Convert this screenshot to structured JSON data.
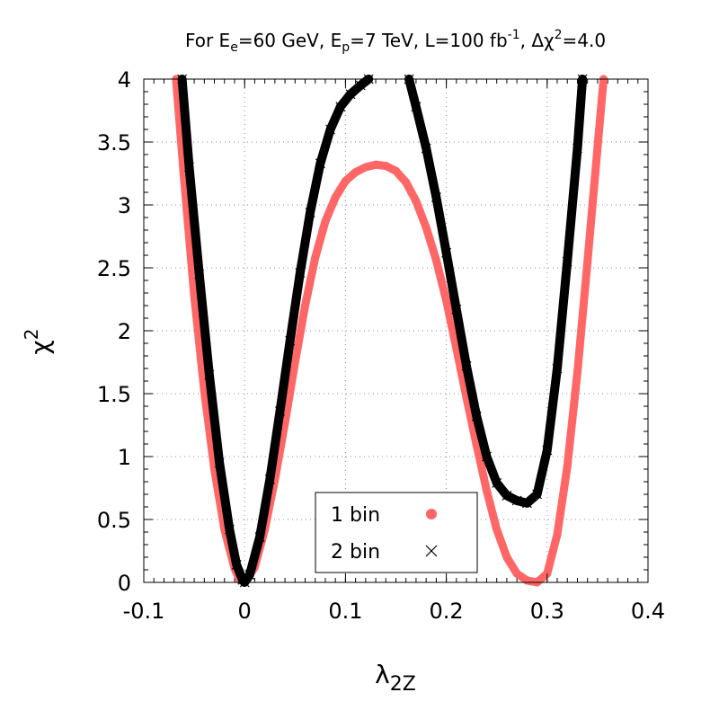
{
  "chart_data": {
    "type": "scatter",
    "title": {
      "p1": "For E",
      "s1": "e",
      "p2": "=60 GeV, E",
      "s2": "p",
      "p3": "=7 TeV, L=100 fb",
      "s3": "-1",
      "p4": ", Δχ",
      "s4": "2",
      "p5": "=4.0"
    },
    "xlabel": {
      "base": "λ",
      "sub": "2Z"
    },
    "ylabel": {
      "base": "χ",
      "sup": "2"
    },
    "xlim": [
      -0.1,
      0.4
    ],
    "ylim": [
      0,
      4
    ],
    "x_ticks": [
      {
        "v": -0.1,
        "label": "-0.1"
      },
      {
        "v": 0,
        "label": "0"
      },
      {
        "v": 0.1,
        "label": "0.1"
      },
      {
        "v": 0.2,
        "label": "0.2"
      },
      {
        "v": 0.3,
        "label": "0.3"
      },
      {
        "v": 0.4,
        "label": "0.4"
      }
    ],
    "y_ticks": [
      {
        "v": 0,
        "label": "0"
      },
      {
        "v": 0.5,
        "label": "0.5"
      },
      {
        "v": 1,
        "label": "1"
      },
      {
        "v": 1.5,
        "label": "1.5"
      },
      {
        "v": 2,
        "label": "2"
      },
      {
        "v": 2.5,
        "label": "2.5"
      },
      {
        "v": 3,
        "label": "3"
      },
      {
        "v": 3.5,
        "label": "3.5"
      },
      {
        "v": 4,
        "label": "4"
      }
    ],
    "grid": true,
    "legend_position": "bottom-center",
    "series": [
      {
        "name": "1 bin",
        "marker": "circle",
        "color": "#ff6666",
        "points": [
          [
            -0.068,
            4.0
          ],
          [
            -0.06,
            3.2
          ],
          [
            -0.05,
            2.28
          ],
          [
            -0.04,
            1.52
          ],
          [
            -0.03,
            0.9
          ],
          [
            -0.02,
            0.42
          ],
          [
            -0.01,
            0.11
          ],
          [
            -0.005,
            0.02
          ],
          [
            0.0,
            0.0
          ],
          [
            0.01,
            0.12
          ],
          [
            0.02,
            0.42
          ],
          [
            0.03,
            0.82
          ],
          [
            0.04,
            1.27
          ],
          [
            0.05,
            1.75
          ],
          [
            0.06,
            2.2
          ],
          [
            0.07,
            2.58
          ],
          [
            0.08,
            2.87
          ],
          [
            0.09,
            3.06
          ],
          [
            0.1,
            3.19
          ],
          [
            0.11,
            3.26
          ],
          [
            0.12,
            3.3
          ],
          [
            0.13,
            3.32
          ],
          [
            0.14,
            3.31
          ],
          [
            0.15,
            3.27
          ],
          [
            0.16,
            3.18
          ],
          [
            0.17,
            3.03
          ],
          [
            0.18,
            2.82
          ],
          [
            0.19,
            2.56
          ],
          [
            0.2,
            2.24
          ],
          [
            0.21,
            1.86
          ],
          [
            0.22,
            1.47
          ],
          [
            0.23,
            1.09
          ],
          [
            0.24,
            0.73
          ],
          [
            0.25,
            0.42
          ],
          [
            0.26,
            0.2
          ],
          [
            0.27,
            0.07
          ],
          [
            0.28,
            0.015
          ],
          [
            0.29,
            0.0
          ],
          [
            0.3,
            0.07
          ],
          [
            0.31,
            0.38
          ],
          [
            0.32,
            0.92
          ],
          [
            0.33,
            1.67
          ],
          [
            0.34,
            2.55
          ],
          [
            0.35,
            3.46
          ],
          [
            0.356,
            4.0
          ]
        ]
      },
      {
        "name": "2 bin",
        "marker": "cross",
        "color": "#000000",
        "points": [
          [
            -0.062,
            4.0
          ],
          [
            -0.055,
            3.3
          ],
          [
            -0.045,
            2.45
          ],
          [
            -0.035,
            1.65
          ],
          [
            -0.025,
            0.95
          ],
          [
            -0.015,
            0.42
          ],
          [
            -0.008,
            0.14
          ],
          [
            -0.002,
            0.02
          ],
          [
            0.0,
            0.0
          ],
          [
            0.005,
            0.06
          ],
          [
            0.015,
            0.36
          ],
          [
            0.025,
            0.82
          ],
          [
            0.035,
            1.36
          ],
          [
            0.045,
            1.92
          ],
          [
            0.055,
            2.46
          ],
          [
            0.065,
            2.94
          ],
          [
            0.075,
            3.33
          ],
          [
            0.085,
            3.6
          ],
          [
            0.095,
            3.78
          ],
          [
            0.105,
            3.88
          ],
          [
            0.115,
            3.95
          ],
          [
            0.123,
            4.0
          ],
          [
            0.163,
            4.0
          ],
          [
            0.17,
            3.78
          ],
          [
            0.18,
            3.45
          ],
          [
            0.19,
            3.06
          ],
          [
            0.2,
            2.62
          ],
          [
            0.21,
            2.17
          ],
          [
            0.22,
            1.72
          ],
          [
            0.23,
            1.32
          ],
          [
            0.24,
            1.0
          ],
          [
            0.25,
            0.79
          ],
          [
            0.26,
            0.69
          ],
          [
            0.27,
            0.65
          ],
          [
            0.28,
            0.63
          ],
          [
            0.29,
            0.7
          ],
          [
            0.3,
            1.05
          ],
          [
            0.31,
            1.7
          ],
          [
            0.32,
            2.55
          ],
          [
            0.33,
            3.45
          ],
          [
            0.335,
            4.0
          ]
        ]
      }
    ]
  }
}
